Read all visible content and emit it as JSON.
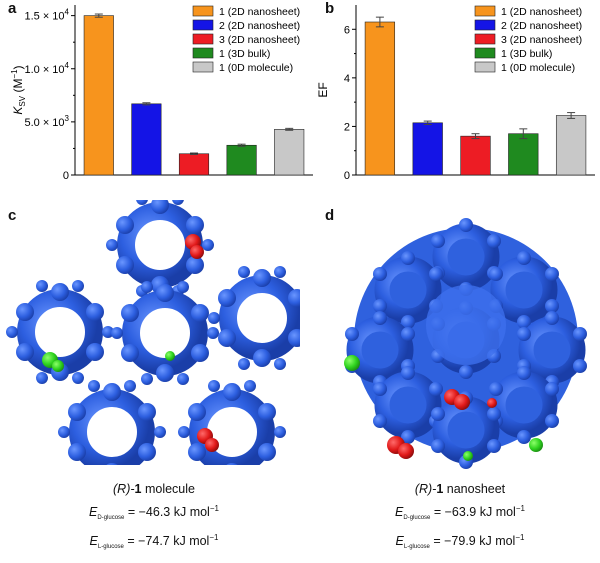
{
  "figure": {
    "panel_a": "a",
    "panel_b": "b",
    "panel_c": "c",
    "panel_d": "d"
  },
  "legend": {
    "entries": [
      "1 (2D nanosheet)",
      "2 (2D nanosheet)",
      "3 (2D nanosheet)",
      "1 (3D bulk)",
      "1 (0D molecule)"
    ],
    "colors": [
      "#f7941d",
      "#1414e6",
      "#ed1c24",
      "#1f8a1f",
      "#c8c8c8"
    ]
  },
  "chart_data": [
    {
      "type": "bar",
      "panel": "a",
      "categories": [
        "1 (2D nanosheet)",
        "2 (2D nanosheet)",
        "3 (2D nanosheet)",
        "1 (3D bulk)",
        "1 (0D molecule)"
      ],
      "values": [
        15000,
        6700,
        2000,
        2800,
        4300
      ],
      "errors": [
        150,
        100,
        70,
        100,
        90
      ],
      "colors": [
        "#f7941d",
        "#1414e6",
        "#ed1c24",
        "#1f8a1f",
        "#c8c8c8"
      ],
      "ylabel": "K",
      "ylabel_sub": "SV",
      "ylabel_unit": "(M",
      "ylabel_unit_sup": "−1",
      "ylabel_unit_end": ")",
      "ylim": [
        0,
        16000
      ],
      "yticks": [
        0,
        5000,
        10000,
        15000
      ],
      "ytick_labels": [
        "0",
        "5.0 × 10",
        "1.0 × 10",
        "1.5 × 10"
      ],
      "ytick_exponents": [
        "",
        "3",
        "4",
        "4"
      ],
      "legend_position": "top-right"
    },
    {
      "type": "bar",
      "panel": "b",
      "categories": [
        "1 (2D nanosheet)",
        "2 (2D nanosheet)",
        "3 (2D nanosheet)",
        "1 (3D bulk)",
        "1 (0D molecule)"
      ],
      "values": [
        6.3,
        2.15,
        1.6,
        1.7,
        2.45
      ],
      "errors": [
        0.2,
        0.07,
        0.1,
        0.2,
        0.12
      ],
      "colors": [
        "#f7941d",
        "#1414e6",
        "#ed1c24",
        "#1f8a1f",
        "#c8c8c8"
      ],
      "ylabel": "EF",
      "ylim": [
        0,
        7
      ],
      "yticks": [
        0,
        2,
        4,
        6
      ],
      "ytick_labels": [
        "0",
        "2",
        "4",
        "6"
      ],
      "legend_position": "top-right"
    }
  ],
  "captions": {
    "molecule": {
      "prefix": "(R)-",
      "number": "1",
      "suffix": " molecule",
      "e1_sub": "D-glucose",
      "e1_value": " = −46.3 kJ mol",
      "e2_sub": "L-glucose",
      "e2_value": " = −74.7 kJ mol",
      "sup": "−1"
    },
    "nanosheet": {
      "prefix": "(R)-",
      "number": "1",
      "suffix": " nanosheet",
      "e1_sub": "D-glucose",
      "e1_value": " = −63.9 kJ mol",
      "e2_sub": "L-glucose",
      "e2_value": " = −79.9 kJ mol",
      "sup": "−1"
    }
  }
}
